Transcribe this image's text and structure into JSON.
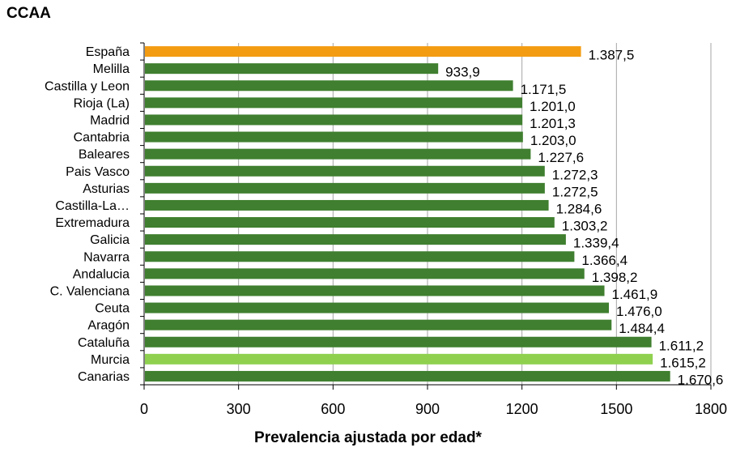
{
  "chart_data": {
    "type": "bar",
    "orientation": "horizontal",
    "title": "CCAA",
    "xlabel": "Prevalencia ajustada por edad*",
    "ylabel": "",
    "xlim": [
      0,
      1800
    ],
    "xticks": [
      0,
      300,
      600,
      900,
      1200,
      1500,
      1800
    ],
    "xtick_labels": [
      "0",
      "300",
      "600",
      "900",
      "1200",
      "1500",
      "1800"
    ],
    "grid": "vertical",
    "categories": [
      "España",
      "Melilla",
      "Castilla y Leon",
      "Rioja (La)",
      "Madrid",
      "Cantabria",
      "Baleares",
      "Pais Vasco",
      "Asturias",
      "Castilla-La…",
      "Extremadura",
      "Galicia",
      "Navarra",
      "Andalucia",
      "C. Valenciana",
      "Ceuta",
      "Aragón",
      "Cataluña",
      "Murcia",
      "Canarias"
    ],
    "values": [
      1387.5,
      933.9,
      1171.5,
      1201.0,
      1201.3,
      1203.0,
      1227.6,
      1272.3,
      1272.5,
      1284.6,
      1303.2,
      1339.4,
      1366.4,
      1398.2,
      1461.9,
      1476.0,
      1484.4,
      1611.2,
      1615.2,
      1670.6
    ],
    "value_labels": [
      "1.387,5",
      "933,9",
      "1.171,5",
      "1.201,0",
      "1.201,3",
      "1.203,0",
      "1.227,6",
      "1.272,3",
      "1.272,5",
      "1.284,6",
      "1.303,2",
      "1.339,4",
      "1.366,4",
      "1.398,2",
      "1.461,9",
      "1.476,0",
      "1.484,4",
      "1.611,2",
      "1.615,2",
      "1.670,6"
    ],
    "bar_colors": [
      "#f39c12",
      "#3f7f2f",
      "#3f7f2f",
      "#3f7f2f",
      "#3f7f2f",
      "#3f7f2f",
      "#3f7f2f",
      "#3f7f2f",
      "#3f7f2f",
      "#3f7f2f",
      "#3f7f2f",
      "#3f7f2f",
      "#3f7f2f",
      "#3f7f2f",
      "#3f7f2f",
      "#3f7f2f",
      "#3f7f2f",
      "#3f7f2f",
      "#8fd14f",
      "#3f7f2f"
    ]
  }
}
